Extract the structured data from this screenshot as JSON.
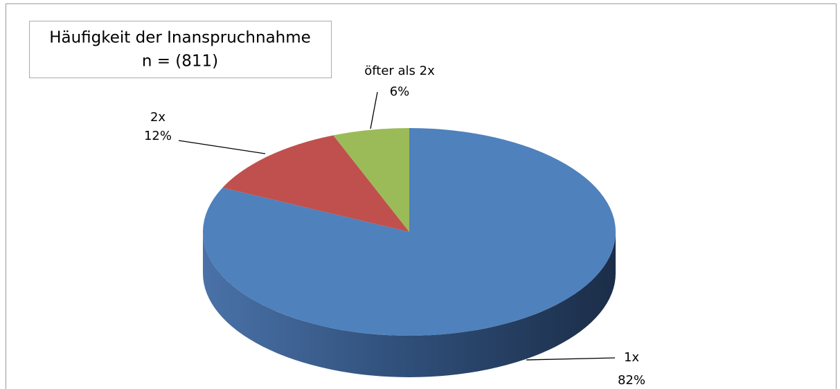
{
  "chart_data": {
    "type": "pie",
    "title": "Häufigkeit der Inanspruchnahme",
    "subtitle": "n = (811)",
    "categories": [
      "1x",
      "2x",
      "öfter als 2x"
    ],
    "values": [
      82,
      12,
      6
    ],
    "value_labels": [
      "82%",
      "12%",
      "6%"
    ],
    "colors": [
      "#4f81bd",
      "#c0504d",
      "#9bbb59"
    ]
  }
}
